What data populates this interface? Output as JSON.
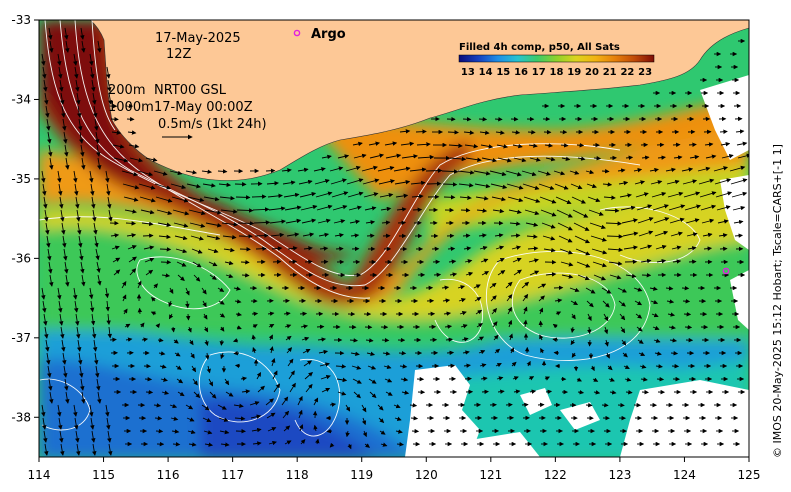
{
  "map": {
    "datetime_line1": "17-May-2025",
    "datetime_line2": "12Z",
    "depth_line1": "200m",
    "depth_line2": "1000m",
    "product": "NRT00 GSL",
    "product_time": "17-May 00:00Z",
    "vector_scale_label": "0.5m/s (1kt 24h)",
    "argo_label": "Argo",
    "side_credit": "© IMOS 20-May-2025 15:12 Hobart; Tscale=CARS+[-1 1]",
    "x_ticks": [
      "114",
      "115",
      "116",
      "117",
      "118",
      "119",
      "120",
      "121",
      "122",
      "123",
      "124",
      "125"
    ],
    "y_ticks": [
      "-33",
      "-34",
      "-35",
      "-36",
      "-37",
      "-38"
    ],
    "lon_range": [
      114,
      125
    ],
    "lat_range": [
      -38.5,
      -33
    ],
    "land_color": "#FDC896"
  },
  "colorbar": {
    "title": "Filled 4h comp, p50, All Sats",
    "tick_labels": [
      "13",
      "14",
      "15",
      "16",
      "17",
      "18",
      "19",
      "20",
      "21",
      "22",
      "23"
    ],
    "range": [
      13,
      23
    ],
    "colors": [
      "#0b0b7a",
      "#0f2fa8",
      "#1767d8",
      "#22a7e8",
      "#2dd0a8",
      "#52c93a",
      "#9bd42a",
      "#e0d21c",
      "#f2a60f",
      "#e07208",
      "#b83c08",
      "#7f0d06"
    ]
  }
}
